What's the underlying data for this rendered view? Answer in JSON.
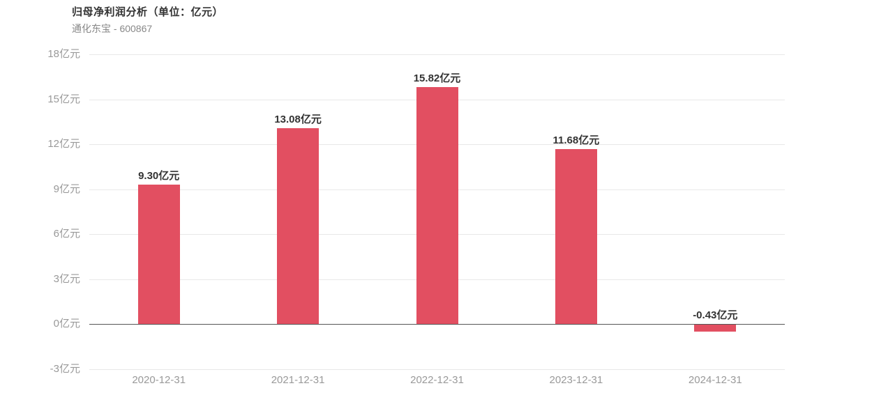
{
  "header": {
    "title": "归母净利润分析（单位：亿元）",
    "subtitle": "通化东宝 - 600867"
  },
  "chart_data": {
    "type": "bar",
    "title": "归母净利润分析（单位：亿元）",
    "subtitle": "通化东宝 - 600867",
    "categories": [
      "2020-12-31",
      "2021-12-31",
      "2022-12-31",
      "2023-12-31",
      "2024-12-31"
    ],
    "values": [
      9.3,
      13.08,
      15.82,
      11.68,
      -0.43
    ],
    "value_labels": [
      "9.30亿元",
      "13.08亿元",
      "15.82亿元",
      "11.68亿元",
      "-0.43亿元"
    ],
    "unit": "亿元",
    "xlabel": "",
    "ylabel": "亿元",
    "ylim": [
      -3,
      18
    ],
    "ytick_step": 3,
    "yticks": [
      {
        "value": 18,
        "label": "18亿元"
      },
      {
        "value": 15,
        "label": "15亿元"
      },
      {
        "value": 12,
        "label": "12亿元"
      },
      {
        "value": 9,
        "label": "9亿元"
      },
      {
        "value": 6,
        "label": "6亿元"
      },
      {
        "value": 3,
        "label": "3亿元"
      },
      {
        "value": 0,
        "label": "0亿元"
      },
      {
        "value": -3,
        "label": "-3亿元"
      }
    ],
    "grid": true,
    "legend": "none",
    "colors": {
      "bar": "#e24f61",
      "grid_line": "#e8e8e8",
      "zero_line": "#555555",
      "axis_label": "#999999",
      "value_label": "#333333",
      "title": "#333333",
      "subtitle": "#888888"
    }
  }
}
